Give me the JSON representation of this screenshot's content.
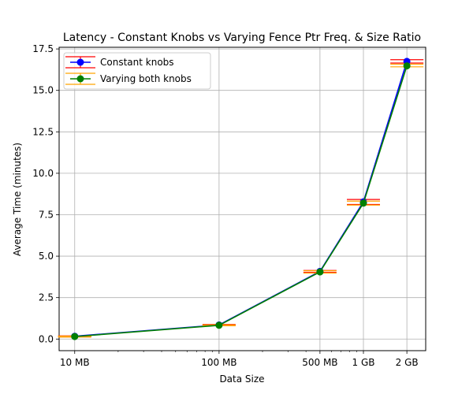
{
  "chart_data": {
    "type": "line",
    "title": "Latency - Constant Knobs vs Varying Fence Ptr Freq. & Size Ratio",
    "xlabel": "Data Size",
    "ylabel": "Average Time (minutes)",
    "x_scale": "log",
    "x_values_mb": [
      10,
      100,
      500,
      1000,
      2000
    ],
    "x_tick_labels": [
      "10 MB",
      "100 MB",
      "500 MB",
      "1 GB",
      "2 GB"
    ],
    "xlim_mb": [
      7.8,
      2700
    ],
    "ylim": [
      -0.7,
      17.6
    ],
    "y_ticks": [
      0.0,
      2.5,
      5.0,
      7.5,
      10.0,
      12.5,
      15.0,
      17.5
    ],
    "y_tick_labels": [
      "0.0",
      "2.5",
      "5.0",
      "7.5",
      "10.0",
      "12.5",
      "15.0",
      "17.5"
    ],
    "grid": true,
    "legend_position": "top-left",
    "series": [
      {
        "name": "Constant knobs",
        "color": "#0000ff",
        "errorbar_color": "#ff0000",
        "values": [
          0.17,
          0.85,
          4.08,
          8.28,
          16.75
        ],
        "lower": [
          0.15,
          0.82,
          4.02,
          8.12,
          16.65
        ],
        "upper": [
          0.19,
          0.88,
          4.14,
          8.42,
          16.85
        ]
      },
      {
        "name": "Varying both knobs",
        "color": "#008000",
        "errorbar_color": "#ffa500",
        "values": [
          0.15,
          0.83,
          4.05,
          8.2,
          16.48
        ],
        "lower": [
          0.12,
          0.8,
          3.98,
          8.08,
          16.42
        ],
        "upper": [
          0.18,
          0.86,
          4.12,
          8.32,
          16.58
        ]
      }
    ]
  }
}
